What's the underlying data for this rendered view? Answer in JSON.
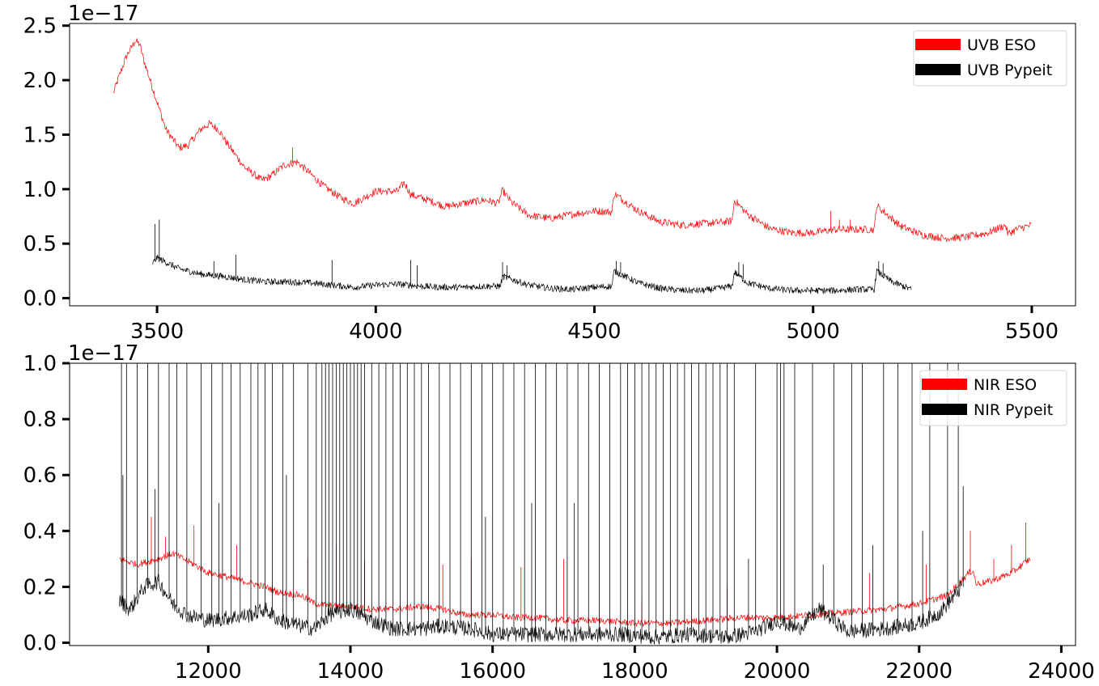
{
  "chart_data": [
    {
      "type": "line",
      "panel": "top",
      "title": "",
      "xlabel": "",
      "ylabel": "",
      "offset_text": "1e−17",
      "xlim": [
        3300,
        5600
      ],
      "ylim": [
        -0.07,
        2.52
      ],
      "xticks": [
        3500,
        4000,
        4500,
        5000,
        5500
      ],
      "xtick_labels": [
        "3500",
        "4000",
        "4500",
        "5000",
        "5500"
      ],
      "yticks": [
        0.0,
        0.5,
        1.0,
        1.5,
        2.0,
        2.5
      ],
      "ytick_labels": [
        "0.0",
        "0.5",
        "1.0",
        "1.5",
        "2.0",
        "2.5"
      ],
      "grid": false,
      "legend_position": "top-right",
      "series": [
        {
          "name": "UVB ESO",
          "color": "#ff0000",
          "noise": 0.035,
          "x": [
            3400,
            3410,
            3430,
            3450,
            3460,
            3470,
            3480,
            3500,
            3520,
            3550,
            3570,
            3600,
            3620,
            3640,
            3660,
            3700,
            3740,
            3760,
            3790,
            3820,
            3840,
            3880,
            3920,
            3950,
            4000,
            4050,
            4065,
            4080,
            4120,
            4160,
            4200,
            4250,
            4280,
            4290,
            4310,
            4350,
            4400,
            4450,
            4500,
            4540,
            4545,
            4600,
            4650,
            4700,
            4800,
            4815,
            4820,
            4850,
            4900,
            4950,
            5000,
            5050,
            5100,
            5140,
            5145,
            5200,
            5250,
            5300,
            5350,
            5400,
            5440,
            5445,
            5470,
            5500
          ],
          "y": [
            1.88,
            2.0,
            2.22,
            2.36,
            2.33,
            2.18,
            2.05,
            1.8,
            1.55,
            1.38,
            1.4,
            1.55,
            1.6,
            1.55,
            1.42,
            1.2,
            1.08,
            1.12,
            1.22,
            1.25,
            1.18,
            1.03,
            0.92,
            0.87,
            0.98,
            0.98,
            1.06,
            0.95,
            0.9,
            0.84,
            0.87,
            0.9,
            0.87,
            0.99,
            0.88,
            0.76,
            0.73,
            0.77,
            0.8,
            0.79,
            0.96,
            0.8,
            0.7,
            0.67,
            0.7,
            0.71,
            0.9,
            0.77,
            0.64,
            0.6,
            0.6,
            0.63,
            0.63,
            0.63,
            0.85,
            0.66,
            0.58,
            0.55,
            0.56,
            0.6,
            0.67,
            0.59,
            0.64,
            0.67
          ],
          "spikes": [
            [
              3810,
              1.38
            ],
            [
              4820,
              0.9
            ],
            [
              5040,
              0.8
            ],
            [
              5060,
              0.72
            ],
            [
              5085,
              0.72
            ]
          ]
        },
        {
          "name": "UVB Pypeit",
          "color": "#000000",
          "noise": 0.03,
          "x": [
            3490,
            3500,
            3550,
            3600,
            3650,
            3700,
            3750,
            3800,
            3850,
            3900,
            3950,
            4000,
            4050,
            4100,
            4150,
            4200,
            4250,
            4285,
            4290,
            4350,
            4400,
            4450,
            4500,
            4540,
            4545,
            4600,
            4650,
            4700,
            4750,
            4800,
            4815,
            4820,
            4850,
            4900,
            4950,
            5000,
            5050,
            5100,
            5140,
            5145,
            5180,
            5225
          ],
          "y": [
            0.32,
            0.37,
            0.27,
            0.22,
            0.2,
            0.17,
            0.15,
            0.15,
            0.14,
            0.12,
            0.1,
            0.12,
            0.13,
            0.11,
            0.1,
            0.1,
            0.11,
            0.11,
            0.2,
            0.12,
            0.09,
            0.08,
            0.1,
            0.11,
            0.25,
            0.14,
            0.09,
            0.07,
            0.07,
            0.1,
            0.11,
            0.24,
            0.14,
            0.09,
            0.07,
            0.07,
            0.07,
            0.08,
            0.08,
            0.25,
            0.15,
            0.08
          ],
          "spikes": [
            [
              3495,
              0.68
            ],
            [
              3505,
              0.72
            ],
            [
              3630,
              0.34
            ],
            [
              3680,
              0.4
            ],
            [
              3900,
              0.35
            ],
            [
              4080,
              0.35
            ],
            [
              4095,
              0.3
            ],
            [
              4290,
              0.33
            ],
            [
              4300,
              0.3
            ],
            [
              4550,
              0.34
            ],
            [
              4560,
              0.33
            ],
            [
              4830,
              0.33
            ],
            [
              4840,
              0.31
            ],
            [
              5150,
              0.34
            ],
            [
              5160,
              0.32
            ]
          ]
        }
      ]
    },
    {
      "type": "line",
      "panel": "bottom",
      "title": "",
      "xlabel": "",
      "ylabel": "",
      "offset_text": "1e−17",
      "xlim": [
        10050,
        24200
      ],
      "ylim": [
        -0.01,
        1.0
      ],
      "xticks": [
        12000,
        14000,
        16000,
        18000,
        20000,
        22000,
        24000
      ],
      "xtick_labels": [
        "12000",
        "14000",
        "16000",
        "18000",
        "20000",
        "22000",
        "24000"
      ],
      "yticks": [
        0.0,
        0.2,
        0.4,
        0.6,
        0.8,
        1.0
      ],
      "ytick_labels": [
        "0.0",
        "0.2",
        "0.4",
        "0.6",
        "0.8",
        "1.0"
      ],
      "grid": false,
      "legend_position": "top-right",
      "series": [
        {
          "name": "NIR ESO",
          "color": "#ff0000",
          "noise": 0.012,
          "x": [
            10750,
            11000,
            11300,
            11500,
            11800,
            12000,
            12200,
            12500,
            12800,
            13000,
            13300,
            13500,
            13800,
            14000,
            14300,
            14600,
            15000,
            15300,
            15600,
            16000,
            16300,
            16600,
            17000,
            17500,
            18000,
            18500,
            19000,
            19500,
            20000,
            20500,
            21000,
            21500,
            22000,
            22400,
            22700,
            22760,
            22800,
            23000,
            23300,
            23560
          ],
          "y": [
            0.3,
            0.28,
            0.3,
            0.32,
            0.28,
            0.25,
            0.24,
            0.22,
            0.2,
            0.18,
            0.17,
            0.14,
            0.13,
            0.13,
            0.12,
            0.12,
            0.13,
            0.12,
            0.1,
            0.1,
            0.09,
            0.09,
            0.08,
            0.08,
            0.07,
            0.07,
            0.08,
            0.09,
            0.09,
            0.1,
            0.11,
            0.12,
            0.14,
            0.17,
            0.25,
            0.26,
            0.21,
            0.22,
            0.25,
            0.3
          ],
          "spikes": [
            [
              11200,
              0.45
            ],
            [
              11400,
              0.38
            ],
            [
              11800,
              0.42
            ],
            [
              12400,
              0.35
            ],
            [
              13400,
              0.3
            ],
            [
              13800,
              0.35
            ],
            [
              14200,
              0.3
            ],
            [
              15300,
              0.28
            ],
            [
              15700,
              0.3
            ],
            [
              16400,
              0.27
            ],
            [
              17000,
              0.3
            ],
            [
              18100,
              0.15
            ],
            [
              19300,
              0.2
            ],
            [
              21300,
              0.25
            ],
            [
              22100,
              0.28
            ],
            [
              22720,
              0.4
            ],
            [
              23050,
              0.3
            ],
            [
              23300,
              0.35
            ],
            [
              23500,
              0.43
            ]
          ]
        },
        {
          "name": "NIR Pypeit",
          "color": "#000000",
          "noise": 0.028,
          "x": [
            10750,
            10900,
            11100,
            11300,
            11500,
            11700,
            12000,
            12300,
            12600,
            12800,
            13000,
            13300,
            13500,
            13700,
            14000,
            14300,
            14600,
            15000,
            15300,
            15700,
            16000,
            16300,
            16800,
            17300,
            17800,
            18300,
            18800,
            19300,
            19700,
            20000,
            20300,
            20600,
            21000,
            21500,
            22000,
            22300,
            22600
          ],
          "y": [
            0.15,
            0.12,
            0.2,
            0.22,
            0.14,
            0.1,
            0.08,
            0.09,
            0.1,
            0.12,
            0.08,
            0.06,
            0.05,
            0.1,
            0.12,
            0.08,
            0.05,
            0.05,
            0.06,
            0.05,
            0.03,
            0.03,
            0.03,
            0.03,
            0.03,
            0.02,
            0.03,
            0.02,
            0.04,
            0.08,
            0.05,
            0.12,
            0.04,
            0.05,
            0.07,
            0.11,
            0.2
          ],
          "spikes": [
            [
              10780,
              1.0
            ],
            [
              10850,
              1.0
            ],
            [
              11000,
              1.0
            ],
            [
              11150,
              1.0
            ],
            [
              11300,
              1.0
            ],
            [
              11450,
              1.0
            ],
            [
              11560,
              1.0
            ],
            [
              11700,
              1.0
            ],
            [
              11900,
              1.0
            ],
            [
              12050,
              1.0
            ],
            [
              12200,
              1.0
            ],
            [
              12320,
              1.0
            ],
            [
              12450,
              1.0
            ],
            [
              12600,
              1.0
            ],
            [
              12700,
              1.0
            ],
            [
              12800,
              1.0
            ],
            [
              12900,
              1.0
            ],
            [
              13050,
              1.0
            ],
            [
              13200,
              1.0
            ],
            [
              13400,
              1.0
            ],
            [
              13520,
              1.0
            ],
            [
              13600,
              1.0
            ],
            [
              13650,
              1.0
            ],
            [
              13700,
              1.0
            ],
            [
              13750,
              1.0
            ],
            [
              13800,
              1.0
            ],
            [
              13850,
              1.0
            ],
            [
              13900,
              1.0
            ],
            [
              13950,
              1.0
            ],
            [
              14000,
              1.0
            ],
            [
              14050,
              1.0
            ],
            [
              14100,
              1.0
            ],
            [
              14150,
              1.0
            ],
            [
              14200,
              1.0
            ],
            [
              14300,
              1.0
            ],
            [
              14400,
              1.0
            ],
            [
              14500,
              1.0
            ],
            [
              14600,
              1.0
            ],
            [
              14700,
              1.0
            ],
            [
              14800,
              1.0
            ],
            [
              14900,
              1.0
            ],
            [
              15000,
              1.0
            ],
            [
              15100,
              1.0
            ],
            [
              15250,
              1.0
            ],
            [
              15400,
              1.0
            ],
            [
              15550,
              1.0
            ],
            [
              15700,
              1.0
            ],
            [
              15850,
              1.0
            ],
            [
              16000,
              1.0
            ],
            [
              16150,
              1.0
            ],
            [
              16300,
              1.0
            ],
            [
              16450,
              1.0
            ],
            [
              16600,
              1.0
            ],
            [
              16750,
              1.0
            ],
            [
              16900,
              1.0
            ],
            [
              17050,
              1.0
            ],
            [
              17200,
              1.0
            ],
            [
              17350,
              1.0
            ],
            [
              17500,
              1.0
            ],
            [
              17650,
              1.0
            ],
            [
              17800,
              1.0
            ],
            [
              17900,
              1.0
            ],
            [
              18000,
              1.0
            ],
            [
              18100,
              1.0
            ],
            [
              18200,
              1.0
            ],
            [
              18300,
              1.0
            ],
            [
              18400,
              1.0
            ],
            [
              18500,
              1.0
            ],
            [
              18600,
              1.0
            ],
            [
              18700,
              1.0
            ],
            [
              18800,
              1.0
            ],
            [
              18900,
              1.0
            ],
            [
              19000,
              1.0
            ],
            [
              19100,
              1.0
            ],
            [
              19200,
              1.0
            ],
            [
              19300,
              1.0
            ],
            [
              19400,
              1.0
            ],
            [
              19700,
              1.0
            ],
            [
              20000,
              1.0
            ],
            [
              20050,
              1.0
            ],
            [
              20100,
              1.0
            ],
            [
              20250,
              1.0
            ],
            [
              20500,
              1.0
            ],
            [
              20800,
              1.0
            ],
            [
              21050,
              1.0
            ],
            [
              21200,
              1.0
            ],
            [
              21500,
              1.0
            ],
            [
              21700,
              1.0
            ],
            [
              21900,
              1.0
            ],
            [
              22150,
              1.0
            ],
            [
              22400,
              1.0
            ],
            [
              22550,
              1.0
            ],
            [
              22620,
              0.56
            ],
            [
              10800,
              0.6
            ],
            [
              11250,
              0.55
            ],
            [
              12150,
              0.5
            ],
            [
              13100,
              0.6
            ],
            [
              15900,
              0.45
            ],
            [
              16550,
              0.5
            ],
            [
              17150,
              0.5
            ],
            [
              19600,
              0.3
            ],
            [
              20650,
              0.28
            ],
            [
              21350,
              0.35
            ],
            [
              22050,
              0.4
            ]
          ]
        }
      ]
    }
  ]
}
